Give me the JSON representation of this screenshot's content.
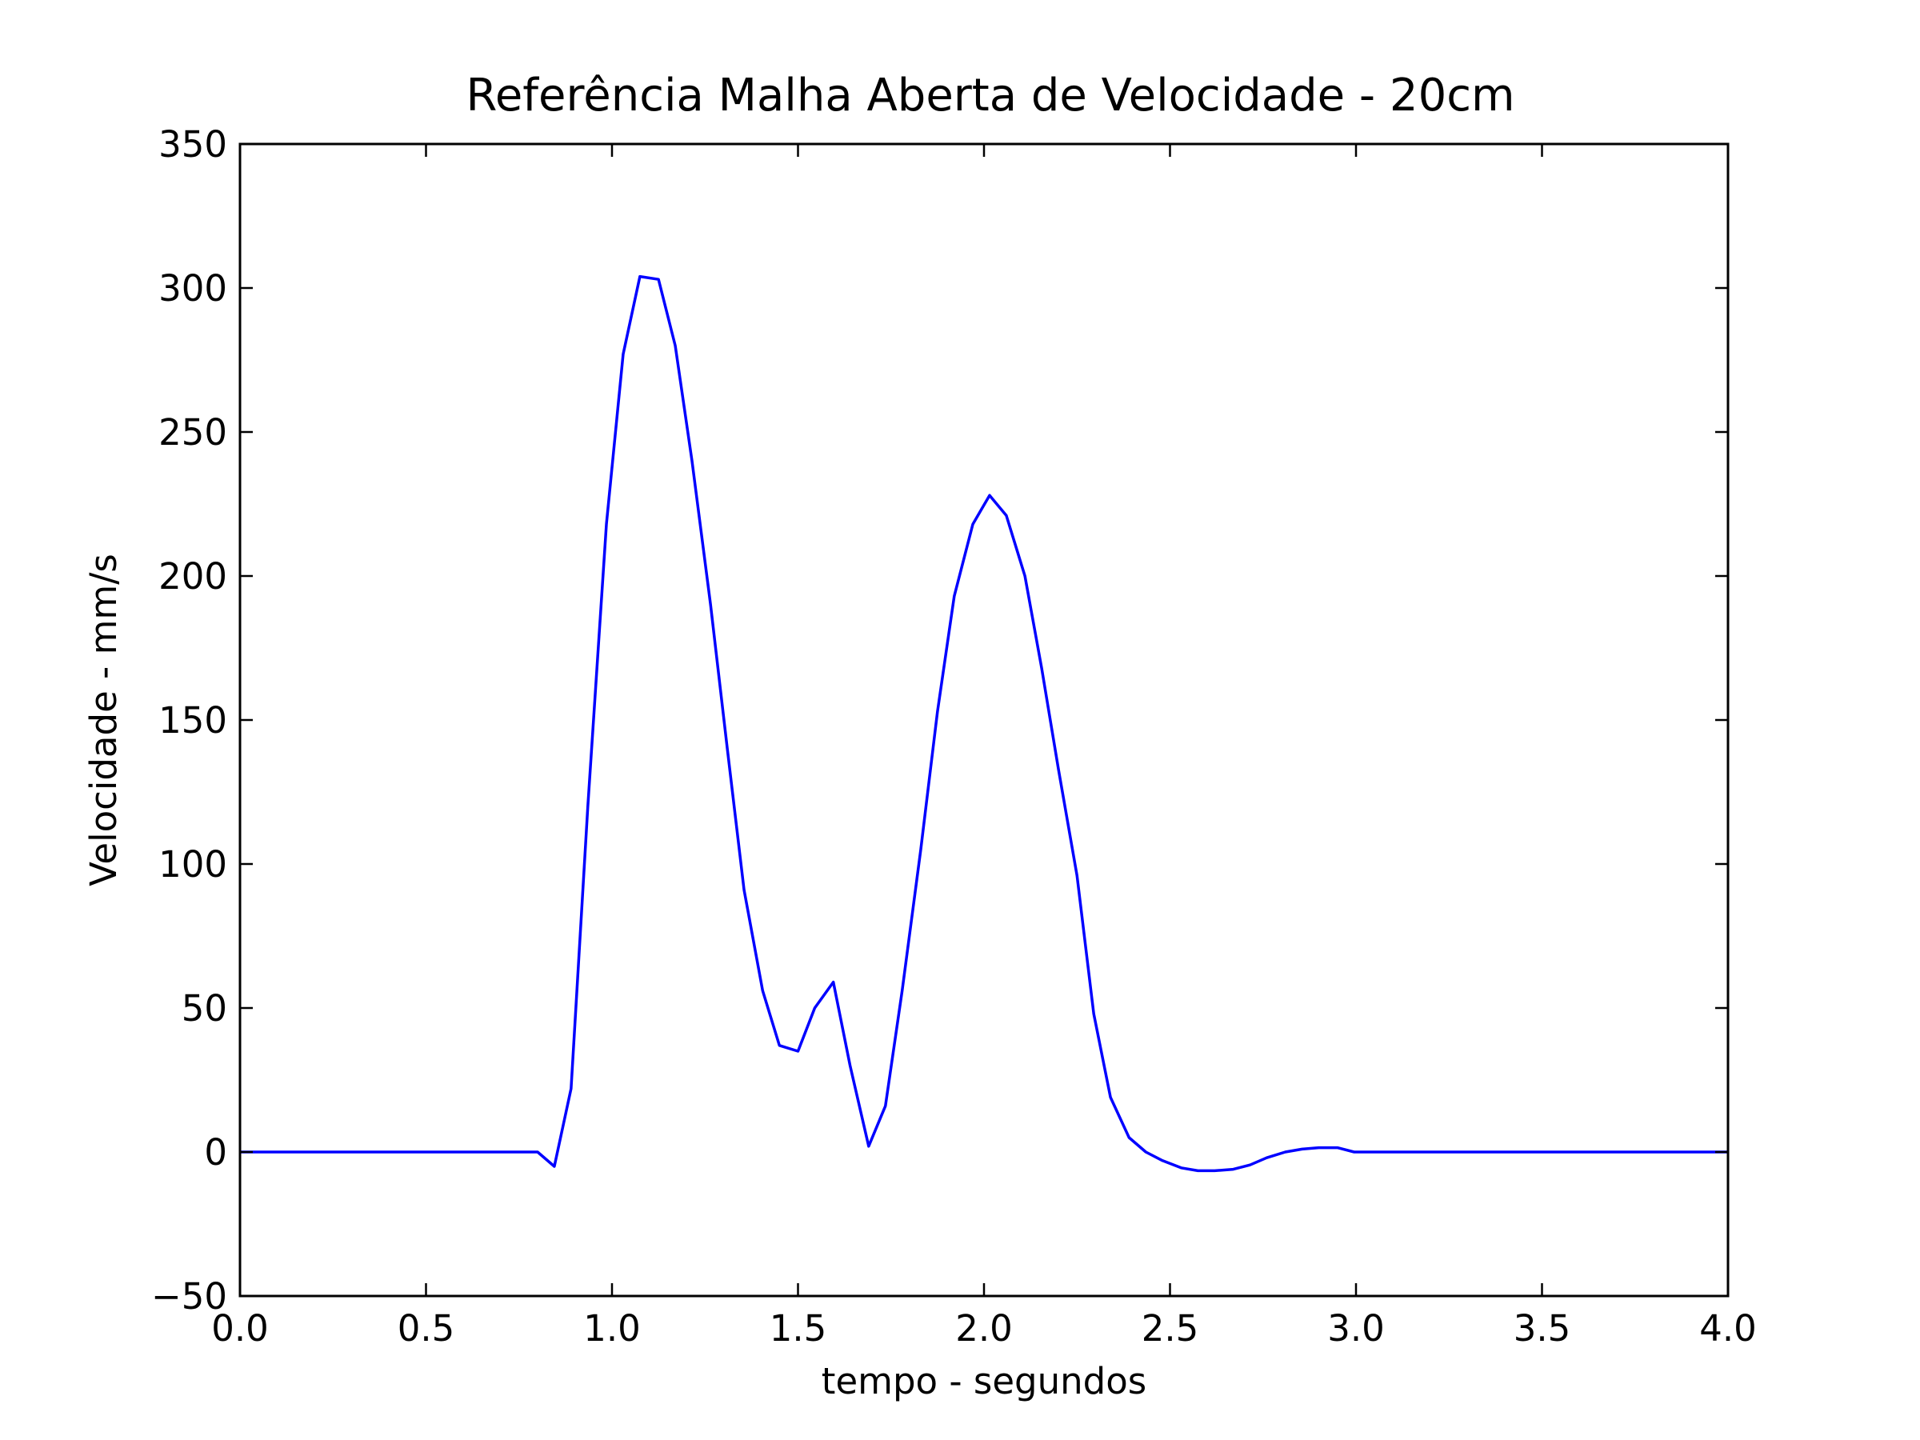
{
  "chart_data": {
    "type": "line",
    "title": "Referência Malha Aberta de Velocidade - 20cm",
    "xlabel": "tempo - segundos",
    "ylabel": "Velocidade - mm/s",
    "xlim": [
      0.0,
      4.0
    ],
    "ylim": [
      -50,
      350
    ],
    "xticks": [
      0.0,
      0.5,
      1.0,
      1.5,
      2.0,
      2.5,
      3.0,
      3.5,
      4.0
    ],
    "xtick_labels": [
      "0.0",
      "0.5",
      "1.0",
      "1.5",
      "2.0",
      "2.5",
      "3.0",
      "3.5",
      "4.0"
    ],
    "yticks": [
      -50,
      0,
      50,
      100,
      150,
      200,
      250,
      300,
      350
    ],
    "ytick_labels": [
      "−50",
      "0",
      "50",
      "100",
      "150",
      "200",
      "250",
      "300",
      "350"
    ],
    "grid": false,
    "legend": "none",
    "series": [
      {
        "color": "#0000ff",
        "x": [
          0.0,
          0.8,
          0.845,
          0.89,
          0.935,
          0.985,
          1.03,
          1.075,
          1.125,
          1.17,
          1.215,
          1.265,
          1.31,
          1.355,
          1.405,
          1.45,
          1.5,
          1.545,
          1.595,
          1.64,
          1.69,
          1.735,
          1.78,
          1.83,
          1.875,
          1.92,
          1.97,
          2.015,
          2.06,
          2.11,
          2.155,
          2.2,
          2.25,
          2.295,
          2.34,
          2.39,
          2.435,
          2.48,
          2.53,
          2.575,
          2.62,
          2.67,
          2.715,
          2.76,
          2.81,
          2.855,
          2.9,
          2.95,
          2.995,
          3.04,
          3.5,
          4.0
        ],
        "y": [
          0,
          0,
          -5,
          22,
          120,
          218,
          277,
          304,
          303,
          280,
          240,
          190,
          140,
          91,
          56,
          37,
          35,
          50,
          59,
          30,
          2,
          16,
          56,
          105,
          153,
          193,
          218,
          228,
          221,
          200,
          168,
          133,
          96,
          48,
          19,
          5,
          0,
          -3,
          -5.5,
          -6.5,
          -6.5,
          -6,
          -4.5,
          -2,
          0,
          1,
          1.5,
          1.5,
          0,
          0,
          0,
          0
        ]
      }
    ]
  }
}
